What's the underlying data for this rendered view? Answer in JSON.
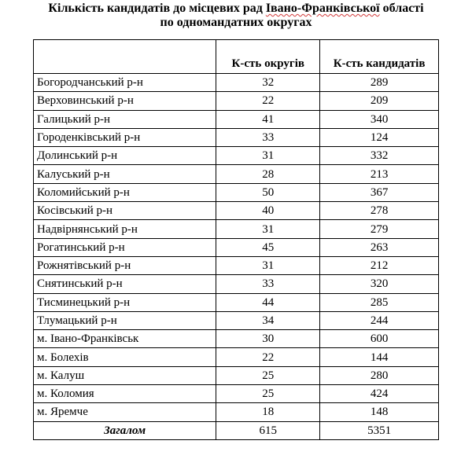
{
  "title": {
    "line1_a": "Кількість кандидатів до місцевих рад ",
    "line1_b": "Івано-Франківської",
    "line1_c": " області",
    "line2": "по одномандатних округах"
  },
  "table": {
    "headers": [
      "",
      "К-сть округів",
      "К-сть кандидатів"
    ],
    "rows": [
      {
        "name": "Богородчанський р-н",
        "districts": "32",
        "candidates": "289"
      },
      {
        "name": "Верховинський р-н",
        "districts": "22",
        "candidates": "209"
      },
      {
        "name": "Галицький р-н",
        "districts": "41",
        "candidates": "340"
      },
      {
        "name": "Городенківський р-н",
        "districts": "33",
        "candidates": "124"
      },
      {
        "name": "Долинський р-н",
        "districts": "31",
        "candidates": "332"
      },
      {
        "name": "Калуський р-н",
        "districts": "28",
        "candidates": "213"
      },
      {
        "name": "Коломийський р-н",
        "districts": "50",
        "candidates": "367"
      },
      {
        "name": "Косівський р-н",
        "districts": "40",
        "candidates": "278"
      },
      {
        "name": "Надвірнянський р-н",
        "districts": "31",
        "candidates": "279"
      },
      {
        "name": "Рогатинський р-н",
        "districts": "45",
        "candidates": "263"
      },
      {
        "name": "Рожнятівський р-н",
        "districts": "31",
        "candidates": "212"
      },
      {
        "name": "Снятинський р-н",
        "districts": "33",
        "candidates": "320"
      },
      {
        "name": "Тисминецький р-н",
        "districts": "44",
        "candidates": "285"
      },
      {
        "name": "Тлумацький р-н",
        "districts": "34",
        "candidates": "244"
      },
      {
        "name": "м. Івано-Франківськ",
        "districts": "30",
        "candidates": "600"
      },
      {
        "name": "м. Болехів",
        "districts": "22",
        "candidates": "144"
      },
      {
        "name": "м. Калуш",
        "districts": "25",
        "candidates": "280"
      },
      {
        "name": "м. Коломия",
        "districts": "25",
        "candidates": "424"
      },
      {
        "name": "м. Яремче",
        "districts": "18",
        "candidates": "148"
      }
    ],
    "total": {
      "label": "Загалом",
      "districts": "615",
      "candidates": "5351"
    }
  }
}
